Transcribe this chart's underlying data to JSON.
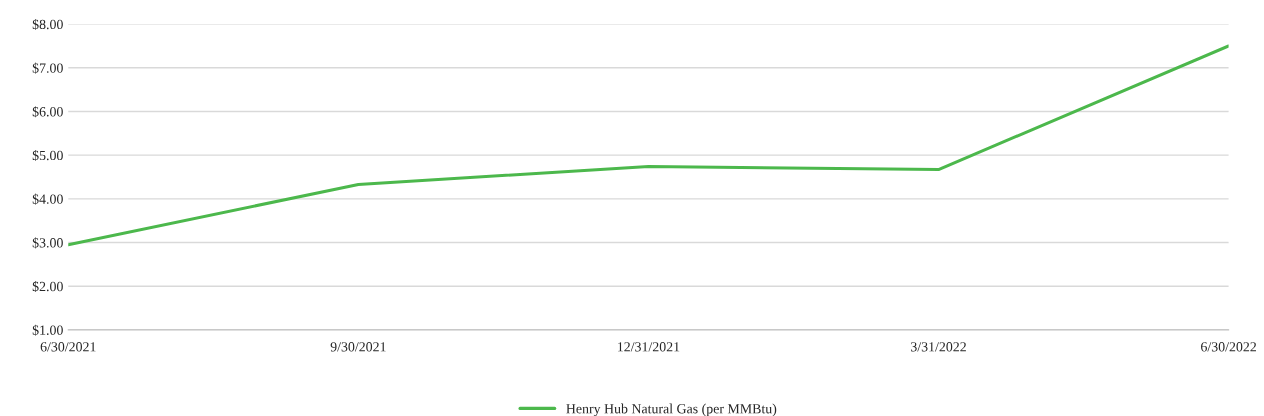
{
  "chart_data": {
    "type": "line",
    "categories": [
      "6/30/2021",
      "9/30/2021",
      "12/31/2021",
      "3/31/2022",
      "6/30/2022"
    ],
    "series": [
      {
        "name": "Henry Hub Natural Gas (per MMBtu)",
        "color": "#4cb84c",
        "values": [
          2.95,
          4.33,
          4.74,
          4.67,
          7.5
        ]
      }
    ],
    "ylim": [
      1,
      8
    ],
    "yticks": [
      {
        "value": 1,
        "label": "$1.00"
      },
      {
        "value": 2,
        "label": "$2.00"
      },
      {
        "value": 3,
        "label": "$3.00"
      },
      {
        "value": 4,
        "label": "$4.00"
      },
      {
        "value": 5,
        "label": "$5.00"
      },
      {
        "value": 6,
        "label": "$6.00"
      },
      {
        "value": 7,
        "label": "$7.00"
      },
      {
        "value": 8,
        "label": "$8.00"
      }
    ],
    "grid": "y",
    "legend": "bottom",
    "marker": "none",
    "line_style": "solid"
  }
}
